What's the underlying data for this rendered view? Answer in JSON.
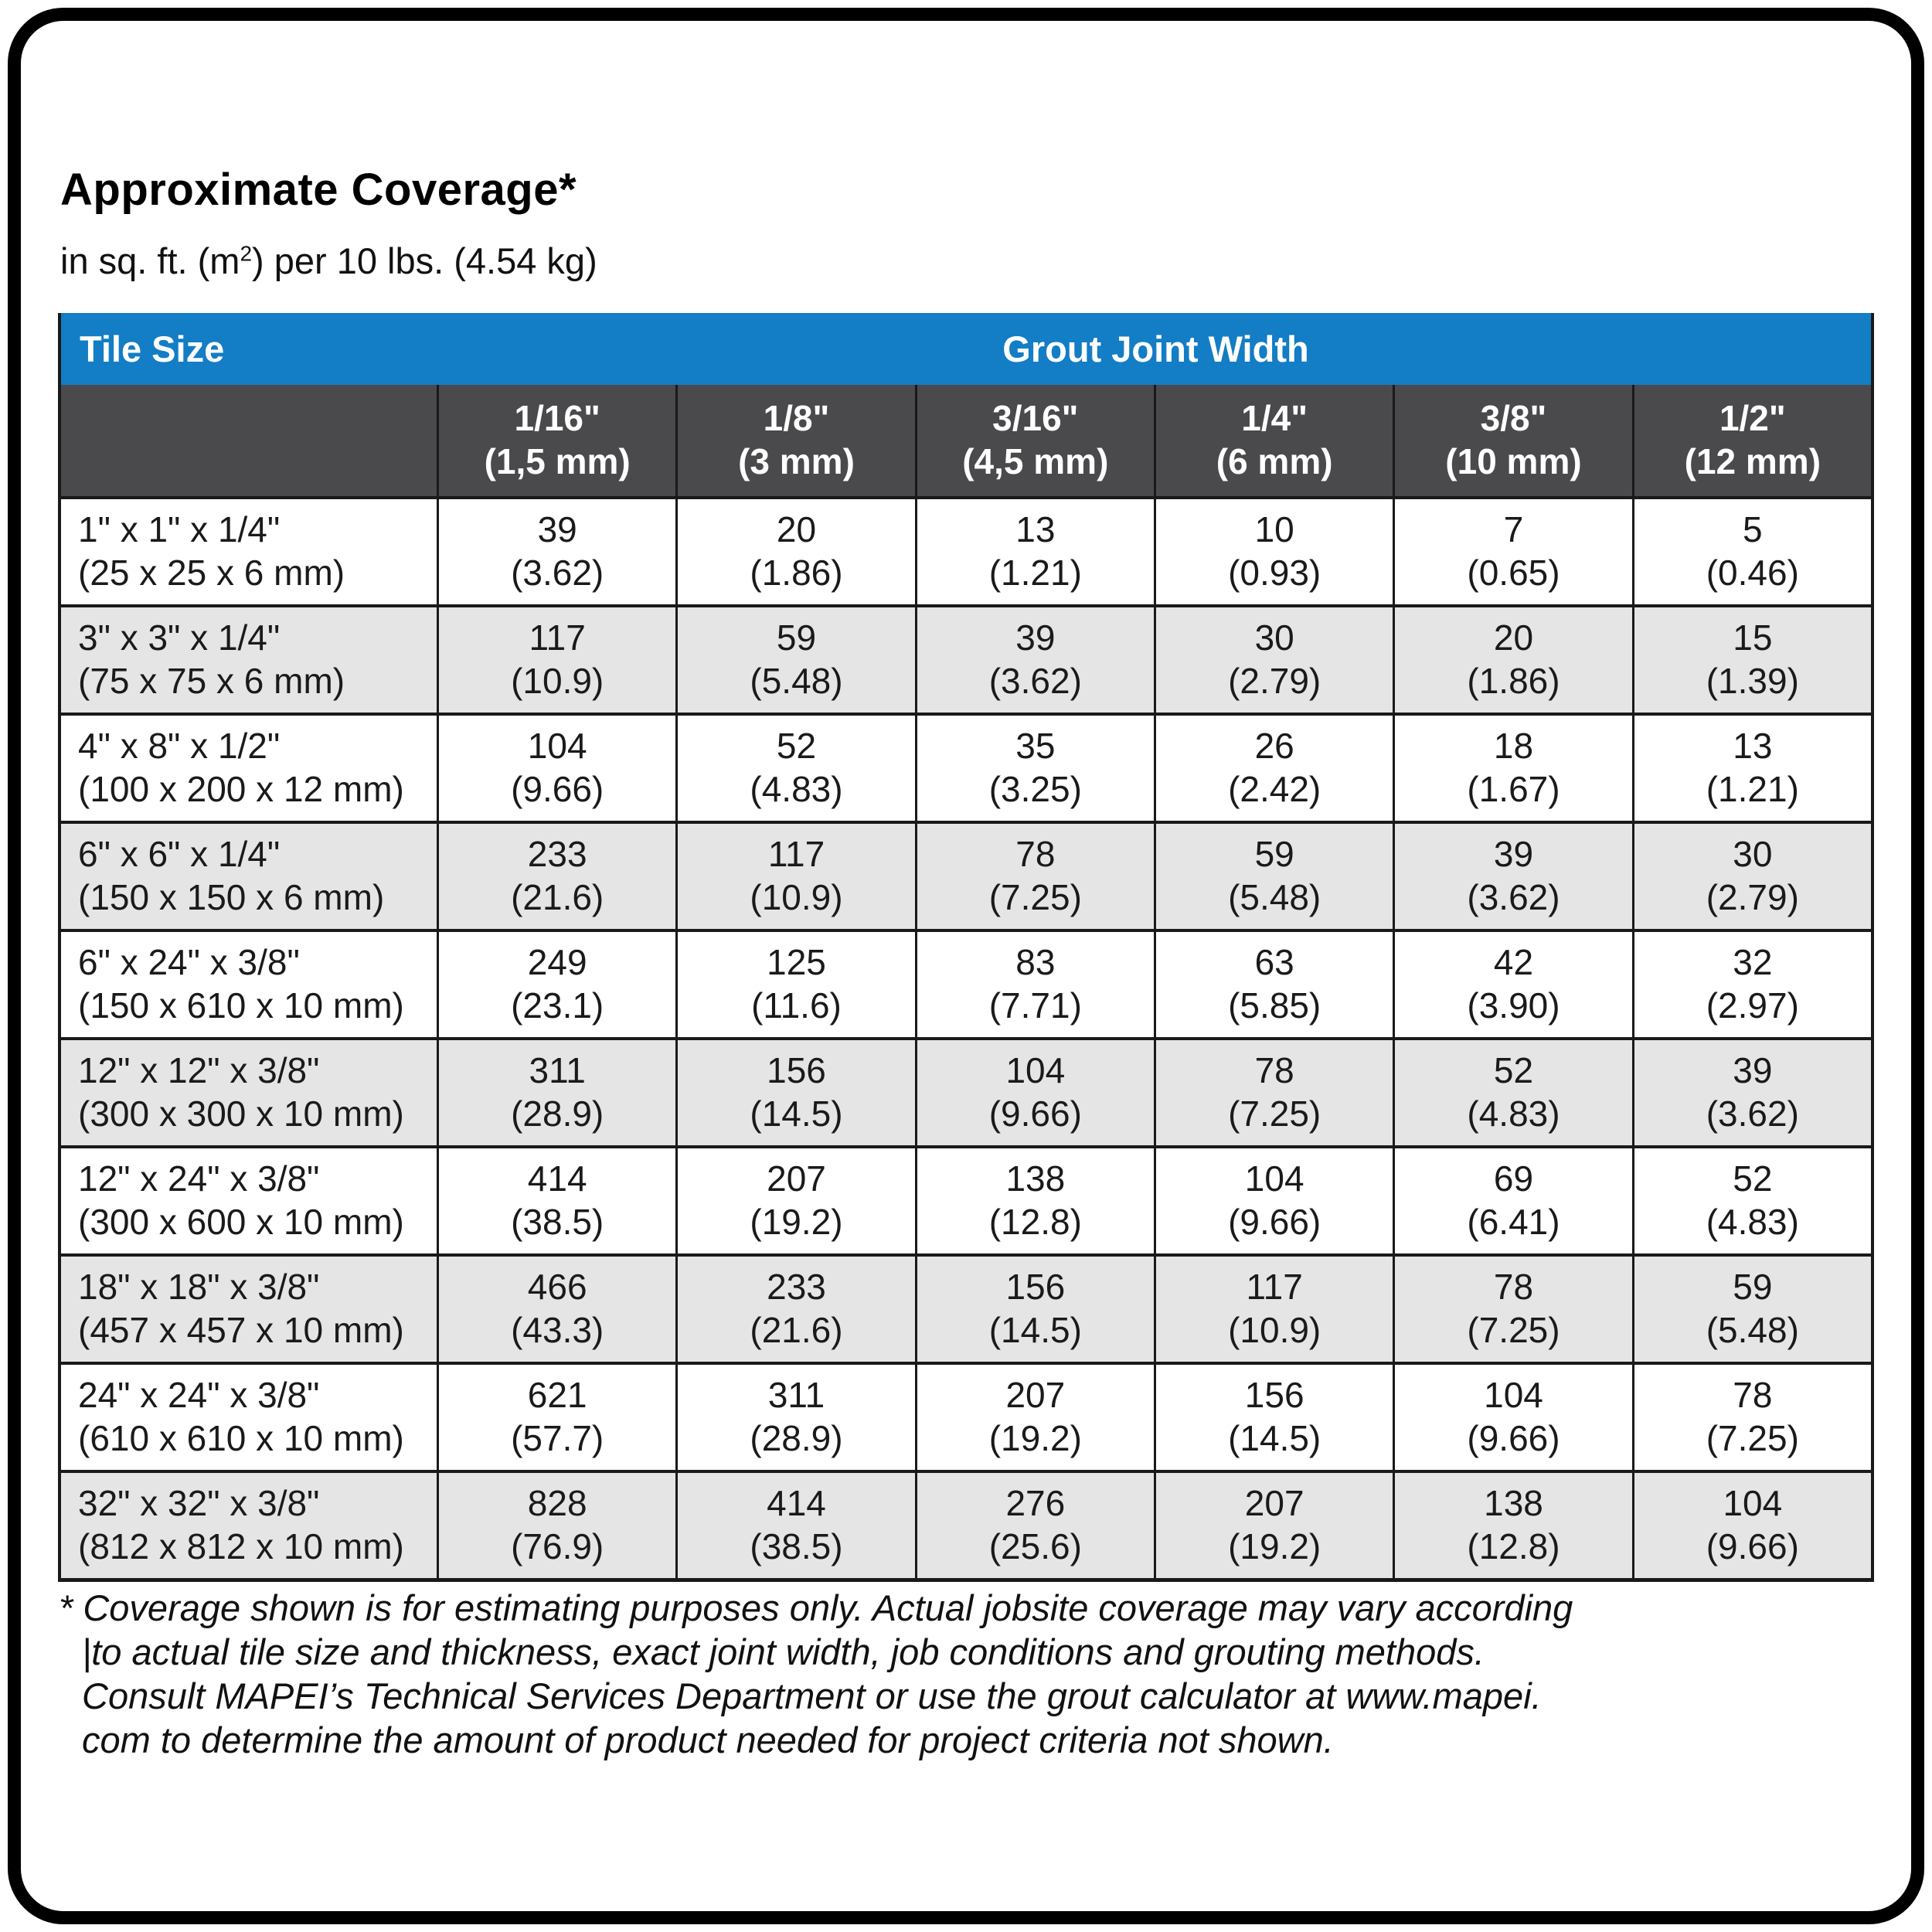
{
  "page": {
    "title": "Approximate Coverage*",
    "subtitle_prefix": "in sq. ft. (m",
    "subtitle_sup": "2",
    "subtitle_suffix": ") per 10 lbs. (4.54 kg)"
  },
  "colors": {
    "header_blue": "#137DC5",
    "subheader_grey": "#4A4A4C",
    "row_alt_grey": "#E5E5E6",
    "border": "#1A1A1A"
  },
  "table": {
    "corner_label": "Tile Size",
    "group_header": "Grout Joint Width",
    "columns": [
      {
        "inch": "1/16\"",
        "metric": "(1,5 mm)"
      },
      {
        "inch": "1/8\"",
        "metric": "(3 mm)"
      },
      {
        "inch": "3/16\"",
        "metric": "(4,5 mm)"
      },
      {
        "inch": "1/4\"",
        "metric": "(6 mm)"
      },
      {
        "inch": "3/8\"",
        "metric": "(10 mm)"
      },
      {
        "inch": "1/2\"",
        "metric": "(12 mm)"
      }
    ],
    "rows": [
      {
        "size_in": "1\" x 1\" x 1/4\"",
        "size_mm": "(25 x 25 x 6 mm)",
        "cells": [
          {
            "v": "39",
            "m": "(3.62)"
          },
          {
            "v": "20",
            "m": "(1.86)"
          },
          {
            "v": "13",
            "m": "(1.21)"
          },
          {
            "v": "10",
            "m": "(0.93)"
          },
          {
            "v": "7",
            "m": "(0.65)"
          },
          {
            "v": "5",
            "m": "(0.46)"
          }
        ]
      },
      {
        "size_in": "3\" x 3\" x 1/4\"",
        "size_mm": "(75 x 75 x 6 mm)",
        "cells": [
          {
            "v": "117",
            "m": "(10.9)"
          },
          {
            "v": "59",
            "m": "(5.48)"
          },
          {
            "v": "39",
            "m": "(3.62)"
          },
          {
            "v": "30",
            "m": "(2.79)"
          },
          {
            "v": "20",
            "m": "(1.86)"
          },
          {
            "v": "15",
            "m": "(1.39)"
          }
        ]
      },
      {
        "size_in": "4\" x 8\" x 1/2\"",
        "size_mm": "(100 x 200 x 12 mm)",
        "cells": [
          {
            "v": "104",
            "m": "(9.66)"
          },
          {
            "v": "52",
            "m": "(4.83)"
          },
          {
            "v": "35",
            "m": "(3.25)"
          },
          {
            "v": "26",
            "m": "(2.42)"
          },
          {
            "v": "18",
            "m": "(1.67)"
          },
          {
            "v": "13",
            "m": "(1.21)"
          }
        ]
      },
      {
        "size_in": "6\" x 6\" x 1/4\"",
        "size_mm": "(150 x 150 x 6 mm)",
        "cells": [
          {
            "v": "233",
            "m": "(21.6)"
          },
          {
            "v": "117",
            "m": "(10.9)"
          },
          {
            "v": "78",
            "m": "(7.25)"
          },
          {
            "v": "59",
            "m": "(5.48)"
          },
          {
            "v": "39",
            "m": "(3.62)"
          },
          {
            "v": "30",
            "m": "(2.79)"
          }
        ]
      },
      {
        "size_in": "6\" x 24\" x 3/8\"",
        "size_mm": "(150 x 610 x 10 mm)",
        "cells": [
          {
            "v": "249",
            "m": "(23.1)"
          },
          {
            "v": "125",
            "m": "(11.6)"
          },
          {
            "v": "83",
            "m": "(7.71)"
          },
          {
            "v": "63",
            "m": "(5.85)"
          },
          {
            "v": "42",
            "m": "(3.90)"
          },
          {
            "v": "32",
            "m": "(2.97)"
          }
        ]
      },
      {
        "size_in": "12\" x 12\" x 3/8\"",
        "size_mm": "(300 x 300 x 10 mm)",
        "cells": [
          {
            "v": "311",
            "m": "(28.9)"
          },
          {
            "v": "156",
            "m": "(14.5)"
          },
          {
            "v": "104",
            "m": "(9.66)"
          },
          {
            "v": "78",
            "m": "(7.25)"
          },
          {
            "v": "52",
            "m": "(4.83)"
          },
          {
            "v": "39",
            "m": "(3.62)"
          }
        ]
      },
      {
        "size_in": "12\" x 24\" x 3/8\"",
        "size_mm": "(300 x 600 x 10 mm)",
        "cells": [
          {
            "v": "414",
            "m": "(38.5)"
          },
          {
            "v": "207",
            "m": "(19.2)"
          },
          {
            "v": "138",
            "m": "(12.8)"
          },
          {
            "v": "104",
            "m": "(9.66)"
          },
          {
            "v": "69",
            "m": "(6.41)"
          },
          {
            "v": "52",
            "m": "(4.83)"
          }
        ]
      },
      {
        "size_in": "18\" x 18\" x 3/8\"",
        "size_mm": "(457 x 457 x 10 mm)",
        "cells": [
          {
            "v": "466",
            "m": "(43.3)"
          },
          {
            "v": "233",
            "m": "(21.6)"
          },
          {
            "v": "156",
            "m": "(14.5)"
          },
          {
            "v": "117",
            "m": "(10.9)"
          },
          {
            "v": "78",
            "m": "(7.25)"
          },
          {
            "v": "59",
            "m": "(5.48)"
          }
        ]
      },
      {
        "size_in": "24\" x 24\" x 3/8\"",
        "size_mm": "(610 x 610 x 10 mm)",
        "cells": [
          {
            "v": "621",
            "m": "(57.7)"
          },
          {
            "v": "311",
            "m": "(28.9)"
          },
          {
            "v": "207",
            "m": "(19.2)"
          },
          {
            "v": "156",
            "m": "(14.5)"
          },
          {
            "v": "104",
            "m": "(9.66)"
          },
          {
            "v": "78",
            "m": "(7.25)"
          }
        ]
      },
      {
        "size_in": "32\" x 32\" x 3/8\"",
        "size_mm": "(812 x 812 x 10 mm)",
        "cells": [
          {
            "v": "828",
            "m": "(76.9)"
          },
          {
            "v": "414",
            "m": "(38.5)"
          },
          {
            "v": "276",
            "m": "(25.6)"
          },
          {
            "v": "207",
            "m": "(19.2)"
          },
          {
            "v": "138",
            "m": "(12.8)"
          },
          {
            "v": "104",
            "m": "(9.66)"
          }
        ]
      }
    ]
  },
  "footnote": {
    "lines": [
      "* Coverage shown is for estimating purposes only. Actual jobsite coverage may vary according",
      "|to actual tile size and thickness, exact joint width, job conditions and grouting methods.",
      "Consult MAPEI’s Technical Services Department or use the grout calculator at www.mapei.",
      "com to determine the amount of product needed for project criteria not shown."
    ]
  }
}
